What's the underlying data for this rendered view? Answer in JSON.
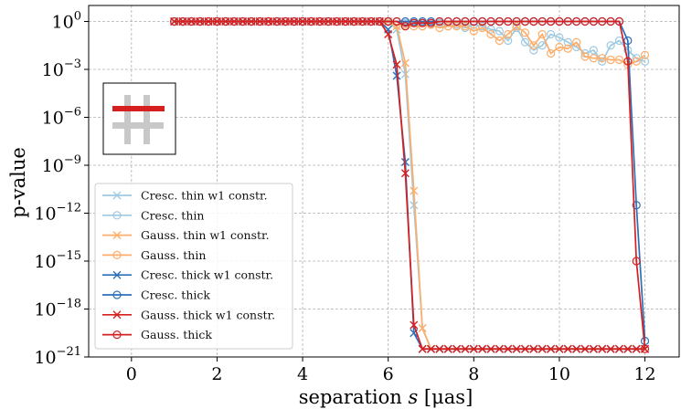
{
  "chart_data": {
    "type": "line",
    "xlabel_prefix": "separation ",
    "xlabel_var": "s",
    "xlabel_unit": " [μas]",
    "ylabel": "p-value",
    "xlim": [
      -1.0,
      12.8
    ],
    "ylim_log10": [
      -21,
      1.0
    ],
    "xticks": [
      0,
      2,
      4,
      6,
      8,
      10,
      12
    ],
    "yticks_log10": [
      0,
      -3,
      -6,
      -9,
      -12,
      -15,
      -18,
      -21
    ],
    "log_scale_y": true,
    "grid": true,
    "legend_position": "lower-left",
    "inset_icon": "hash-icon",
    "inset_colors": {
      "bar": "#d62020",
      "hash": "#c8c8c8"
    },
    "series": [
      {
        "name": "Cresc. thin w1 constr.",
        "color": "#9ecae1",
        "marker": "x",
        "x": [
          1.0,
          1.2,
          1.4,
          1.6,
          1.8,
          2.0,
          2.2,
          2.4,
          2.6,
          2.8,
          3.0,
          3.2,
          3.4,
          3.6,
          3.8,
          4.0,
          4.2,
          4.4,
          4.6,
          4.8,
          5.0,
          5.2,
          5.4,
          5.6,
          5.8,
          6.0,
          6.2,
          6.4,
          6.6,
          6.8,
          7.0,
          7.2,
          7.4,
          7.6,
          7.8,
          8.0,
          8.2,
          8.4,
          8.6,
          8.8,
          9.0,
          9.2,
          9.4,
          9.6,
          9.8,
          10.0,
          10.2,
          10.4,
          10.6,
          10.8,
          11.0,
          11.2,
          11.4,
          11.6,
          11.8,
          12.0
        ],
        "log10_p": [
          0,
          0,
          0,
          0,
          0,
          0,
          0,
          0,
          0,
          0,
          0,
          0,
          0,
          0,
          0,
          0,
          0,
          0,
          0,
          0,
          0,
          0,
          0,
          0,
          0,
          0,
          -0.5,
          -3.3,
          -11.5,
          -19.2,
          -20.5,
          -20.5,
          -20.5,
          -20.5,
          -20.5,
          -20.5,
          -20.5,
          -20.5,
          -20.5,
          -20.5,
          -20.5,
          -20.5,
          -20.5,
          -20.5,
          -20.5,
          -20.5,
          -20.5,
          -20.5,
          -20.5,
          -20.5,
          -20.5,
          -20.5,
          -20.5,
          -20.5,
          -20.5,
          -20.5
        ]
      },
      {
        "name": "Cresc. thin",
        "color": "#9ecae1",
        "marker": "o",
        "x": [
          1.0,
          1.2,
          1.4,
          1.6,
          1.8,
          2.0,
          2.2,
          2.4,
          2.6,
          2.8,
          3.0,
          3.2,
          3.4,
          3.6,
          3.8,
          4.0,
          4.2,
          4.4,
          4.6,
          4.8,
          5.0,
          5.2,
          5.4,
          5.6,
          5.8,
          6.0,
          6.2,
          6.4,
          6.6,
          6.8,
          7.0,
          7.2,
          7.4,
          7.6,
          7.8,
          8.0,
          8.2,
          8.4,
          8.6,
          8.8,
          9.0,
          9.2,
          9.4,
          9.6,
          9.8,
          10.0,
          10.2,
          10.4,
          10.6,
          10.8,
          11.0,
          11.2,
          11.4,
          11.6,
          11.8,
          12.0
        ],
        "log10_p": [
          0,
          0,
          0,
          0,
          0,
          0,
          0,
          0,
          0,
          0,
          0,
          0,
          0,
          0,
          0,
          0,
          0,
          0,
          0,
          0,
          0,
          0,
          0,
          0,
          0,
          0,
          0,
          -0.1,
          -0.1,
          -0.3,
          -0.2,
          -0.1,
          -0.3,
          -0.2,
          -0.4,
          -0.2,
          -0.3,
          -0.5,
          -0.6,
          -1.2,
          -0.4,
          -1.3,
          -1.8,
          -1.5,
          -0.8,
          -1.0,
          -1.3,
          -1.6,
          -2.0,
          -1.8,
          -2.5,
          -1.5,
          -1.2,
          -1.8,
          -2.3,
          -2.5
        ]
      },
      {
        "name": "Gauss. thin w1 constr.",
        "color": "#fdae6b",
        "marker": "x",
        "x": [
          1.0,
          1.2,
          1.4,
          1.6,
          1.8,
          2.0,
          2.2,
          2.4,
          2.6,
          2.8,
          3.0,
          3.2,
          3.4,
          3.6,
          3.8,
          4.0,
          4.2,
          4.4,
          4.6,
          4.8,
          5.0,
          5.2,
          5.4,
          5.6,
          5.8,
          6.0,
          6.2,
          6.4,
          6.6,
          6.8,
          7.0,
          7.2,
          7.4,
          7.6,
          7.8,
          8.0,
          8.2,
          8.4,
          8.6,
          8.8,
          9.0,
          9.2,
          9.4,
          9.6,
          9.8,
          10.0,
          10.2,
          10.4,
          10.6,
          10.8,
          11.0,
          11.2,
          11.4,
          11.6,
          11.8,
          12.0
        ],
        "log10_p": [
          0,
          0,
          0,
          0,
          0,
          0,
          0,
          0,
          0,
          0,
          0,
          0,
          0,
          0,
          0,
          0,
          0,
          0,
          0,
          0,
          0,
          0,
          0,
          0,
          0,
          0,
          -0.3,
          -2.6,
          -10.6,
          -19.2,
          -20.5,
          -20.5,
          -20.5,
          -20.5,
          -20.5,
          -20.5,
          -20.5,
          -20.5,
          -20.5,
          -20.5,
          -20.5,
          -20.5,
          -20.5,
          -20.5,
          -20.5,
          -20.5,
          -20.5,
          -20.5,
          -20.5,
          -20.5,
          -20.5,
          -20.5,
          -20.5,
          -20.5,
          -20.5,
          -20.5
        ]
      },
      {
        "name": "Gauss. thin",
        "color": "#fdae6b",
        "marker": "o",
        "x": [
          1.0,
          1.2,
          1.4,
          1.6,
          1.8,
          2.0,
          2.2,
          2.4,
          2.6,
          2.8,
          3.0,
          3.2,
          3.4,
          3.6,
          3.8,
          4.0,
          4.2,
          4.4,
          4.6,
          4.8,
          5.0,
          5.2,
          5.4,
          5.6,
          5.8,
          6.0,
          6.2,
          6.4,
          6.6,
          6.8,
          7.0,
          7.2,
          7.4,
          7.6,
          7.8,
          8.0,
          8.2,
          8.4,
          8.6,
          8.8,
          9.0,
          9.2,
          9.4,
          9.6,
          9.8,
          10.0,
          10.2,
          10.4,
          10.6,
          10.8,
          11.0,
          11.2,
          11.4,
          11.6,
          11.8,
          12.0
        ],
        "log10_p": [
          0,
          0,
          0,
          0,
          0,
          0,
          0,
          0,
          0,
          0,
          0,
          0,
          0,
          0,
          0,
          0,
          0,
          0,
          0,
          0,
          0,
          0,
          0,
          0,
          0,
          0,
          -0.2,
          -0.2,
          -0.3,
          -0.3,
          -0.2,
          -0.4,
          -0.3,
          -0.3,
          -0.3,
          -0.6,
          -0.4,
          -0.8,
          -1.2,
          -0.8,
          -0.3,
          -0.7,
          -1.5,
          -0.8,
          -2.0,
          -1.6,
          -1.7,
          -1.3,
          -2.2,
          -2.3,
          -2.3,
          -2.4,
          -2.4,
          -2.7,
          -2.5,
          -2.1
        ]
      },
      {
        "name": "Cresc. thick w1 constr.",
        "color": "#2c6fbb",
        "marker": "x",
        "x": [
          1.0,
          1.2,
          1.4,
          1.6,
          1.8,
          2.0,
          2.2,
          2.4,
          2.6,
          2.8,
          3.0,
          3.2,
          3.4,
          3.6,
          3.8,
          4.0,
          4.2,
          4.4,
          4.6,
          4.8,
          5.0,
          5.2,
          5.4,
          5.6,
          5.8,
          6.0,
          6.2,
          6.4,
          6.6,
          6.8,
          7.0,
          7.2,
          7.4,
          7.6,
          7.8,
          8.0,
          8.2,
          8.4,
          8.6,
          8.8,
          9.0,
          9.2,
          9.4,
          9.6,
          9.8,
          10.0,
          10.2,
          10.4,
          10.6,
          10.8,
          11.0,
          11.2,
          11.4,
          11.6,
          11.8,
          12.0
        ],
        "log10_p": [
          0,
          0,
          0,
          0,
          0,
          0,
          0,
          0,
          0,
          0,
          0,
          0,
          0,
          0,
          0,
          0,
          0,
          0,
          0,
          0,
          0,
          0,
          0,
          0,
          0,
          -0.5,
          -3.4,
          -8.8,
          -19.5,
          -20.5,
          -20.5,
          -20.5,
          -20.5,
          -20.5,
          -20.5,
          -20.5,
          -20.5,
          -20.5,
          -20.5,
          -20.5,
          -20.5,
          -20.5,
          -20.5,
          -20.5,
          -20.5,
          -20.5,
          -20.5,
          -20.5,
          -20.5,
          -20.5,
          -20.5,
          -20.5,
          -20.5,
          -20.5,
          -20.5,
          -20.5
        ]
      },
      {
        "name": "Cresc. thick",
        "color": "#2c6fbb",
        "marker": "o",
        "x": [
          1.0,
          1.2,
          1.4,
          1.6,
          1.8,
          2.0,
          2.2,
          2.4,
          2.6,
          2.8,
          3.0,
          3.2,
          3.4,
          3.6,
          3.8,
          4.0,
          4.2,
          4.4,
          4.6,
          4.8,
          5.0,
          5.2,
          5.4,
          5.6,
          5.8,
          6.0,
          6.2,
          6.4,
          6.6,
          6.8,
          7.0,
          7.2,
          7.4,
          7.6,
          7.8,
          8.0,
          8.2,
          8.4,
          8.6,
          8.8,
          9.0,
          9.2,
          9.4,
          9.6,
          9.8,
          10.0,
          10.2,
          10.4,
          10.6,
          10.8,
          11.0,
          11.2,
          11.4,
          11.6,
          11.8,
          12.0
        ],
        "log10_p": [
          0,
          0,
          0,
          0,
          0,
          0,
          0,
          0,
          0,
          0,
          0,
          0,
          0,
          0,
          0,
          0,
          0,
          0,
          0,
          0,
          0,
          0,
          0,
          0,
          0,
          0,
          0,
          0,
          0,
          0,
          0,
          0,
          0,
          0,
          0,
          0,
          0,
          0,
          0,
          0,
          0,
          0,
          0,
          0,
          0,
          0,
          0,
          0,
          0,
          0,
          0,
          0,
          0,
          -1.2,
          -11.5,
          -20.0
        ]
      },
      {
        "name": "Gauss. thick w1 constr.",
        "color": "#d62020",
        "marker": "x",
        "x": [
          1.0,
          1.2,
          1.4,
          1.6,
          1.8,
          2.0,
          2.2,
          2.4,
          2.6,
          2.8,
          3.0,
          3.2,
          3.4,
          3.6,
          3.8,
          4.0,
          4.2,
          4.4,
          4.6,
          4.8,
          5.0,
          5.2,
          5.4,
          5.6,
          5.8,
          6.0,
          6.2,
          6.4,
          6.6,
          6.8,
          7.0,
          7.2,
          7.4,
          7.6,
          7.8,
          8.0,
          8.2,
          8.4,
          8.6,
          8.8,
          9.0,
          9.2,
          9.4,
          9.6,
          9.8,
          10.0,
          10.2,
          10.4,
          10.6,
          10.8,
          11.0,
          11.2,
          11.4,
          11.6,
          11.8,
          12.0
        ],
        "log10_p": [
          0,
          0,
          0,
          0,
          0,
          0,
          0,
          0,
          0,
          0,
          0,
          0,
          0,
          0,
          0,
          0,
          0,
          0,
          0,
          0,
          0,
          0,
          0,
          0,
          0,
          -0.8,
          -2.7,
          -9.5,
          -19.0,
          -20.5,
          -20.5,
          -20.5,
          -20.5,
          -20.5,
          -20.5,
          -20.5,
          -20.5,
          -20.5,
          -20.5,
          -20.5,
          -20.5,
          -20.5,
          -20.5,
          -20.5,
          -20.5,
          -20.5,
          -20.5,
          -20.5,
          -20.5,
          -20.5,
          -20.5,
          -20.5,
          -20.5,
          -20.5,
          -20.5,
          -20.5
        ]
      },
      {
        "name": "Gauss. thick",
        "color": "#d62020",
        "marker": "o",
        "x": [
          1.0,
          1.2,
          1.4,
          1.6,
          1.8,
          2.0,
          2.2,
          2.4,
          2.6,
          2.8,
          3.0,
          3.2,
          3.4,
          3.6,
          3.8,
          4.0,
          4.2,
          4.4,
          4.6,
          4.8,
          5.0,
          5.2,
          5.4,
          5.6,
          5.8,
          6.0,
          6.2,
          6.4,
          6.6,
          6.8,
          7.0,
          7.2,
          7.4,
          7.6,
          7.8,
          8.0,
          8.2,
          8.4,
          8.6,
          8.8,
          9.0,
          9.2,
          9.4,
          9.6,
          9.8,
          10.0,
          10.2,
          10.4,
          10.6,
          10.8,
          11.0,
          11.2,
          11.4,
          11.6,
          11.8,
          12.0
        ],
        "log10_p": [
          0,
          0,
          0,
          0,
          0,
          0,
          0,
          0,
          0,
          0,
          0,
          0,
          0,
          0,
          0,
          0,
          0,
          0,
          0,
          0,
          0,
          0,
          0,
          0,
          0,
          0,
          0,
          -0.3,
          -0.1,
          -0.1,
          -0.1,
          0,
          0,
          0,
          0,
          0,
          0,
          0,
          0,
          0,
          0,
          0,
          0,
          0,
          0,
          0,
          0,
          0,
          0,
          0,
          0,
          0,
          0,
          -2.5,
          -15.0,
          -20.5
        ]
      }
    ]
  }
}
